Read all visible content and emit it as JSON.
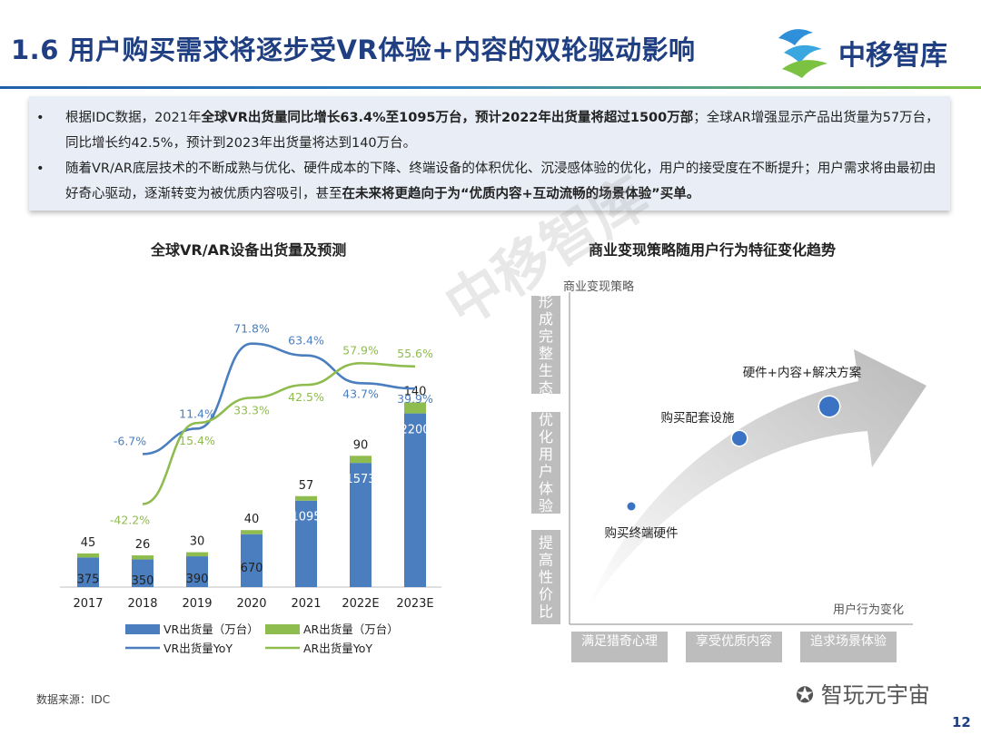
{
  "title": "1.6 用户购买需求将逐步受VR体验+内容的双轮驱动影响",
  "logo": {
    "text": "中移智库"
  },
  "summary": {
    "bullets": [
      {
        "segments": [
          {
            "text": "根据IDC数据，2021年",
            "bold": false
          },
          {
            "text": "全球VR出货量同比增长63.4%至1095万台，预计2022年出货量将超过1500万部",
            "bold": true
          },
          {
            "text": "；全球AR增强显示产品出货量为57万台，同比增长约42.5%，预计到2023年出货量将达到140万台。",
            "bold": false
          }
        ]
      },
      {
        "segments": [
          {
            "text": "随着VR/AR底层技术的不断成熟与优化、硬件成本的下降、终端设备的体积优化、沉浸感体验的优化，用户的接受度在不断提升；用户需求将由最初由好奇心驱动，逐渐转变为被优质内容吸引，甚至",
            "bold": false
          },
          {
            "text": "在未来将更趋向于为“优质内容+互动流畅的场景体验”买单。",
            "bold": true
          }
        ]
      }
    ]
  },
  "left_chart_title": "全球VR/AR设备出货量及预测",
  "right_chart_title": "商业变现策略随用户行为特征变化趋势",
  "chart_data": [
    {
      "type": "bar",
      "title": "全球VR/AR设备出货量及预测",
      "categories": [
        "2017",
        "2018",
        "2019",
        "2020",
        "2021",
        "2022E",
        "2023E"
      ],
      "stacked": true,
      "series": [
        {
          "name": "VR出货量（万台）",
          "values": [
            375,
            350,
            390,
            670,
            1095,
            1573,
            2200
          ],
          "color": "#4a7ebf"
        },
        {
          "name": "AR出货量（万台）",
          "values": [
            45,
            26,
            30,
            40,
            57,
            90,
            140
          ],
          "color": "#8fbc4f"
        }
      ],
      "line_series": [
        {
          "name": "VR出货量YoY",
          "values": [
            -6.7,
            11.4,
            71.8,
            63.4,
            43.7,
            39.9
          ],
          "labels": [
            "-6.7%",
            "11.4%",
            "71.8%",
            "63.4%",
            "43.7%",
            "39.9%"
          ],
          "color": "#4a7ebf"
        },
        {
          "name": "AR出货量YoY",
          "values": [
            -42.2,
            15.4,
            33.3,
            42.5,
            57.9,
            55.6
          ],
          "labels": [
            "-42.2%",
            "15.4%",
            "33.3%",
            "42.5%",
            "57.9%",
            "55.6%"
          ],
          "color": "#8fbc4f"
        }
      ],
      "legend_position": "bottom",
      "grid": false
    },
    {
      "type": "diagram",
      "title": "商业变现策略随用户行为特征变化趋势",
      "y_axis_label": "商业变现策略",
      "x_axis_label": "用户行为变化",
      "y_categories": [
        "形成完整生态",
        "优化用户体验",
        "提高性价比"
      ],
      "x_categories": [
        "满足猎奇心理",
        "享受优质内容",
        "追求场景体验"
      ],
      "points": [
        {
          "label": "购买终端硬件",
          "size": "small"
        },
        {
          "label": "购买配套设施",
          "size": "medium"
        },
        {
          "label": "硬件+内容+解决方案",
          "size": "large"
        }
      ]
    }
  ],
  "source": "数据来源：IDC",
  "wechat": "智玩元宇宙",
  "page_number": "12",
  "watermark": "中移智库"
}
